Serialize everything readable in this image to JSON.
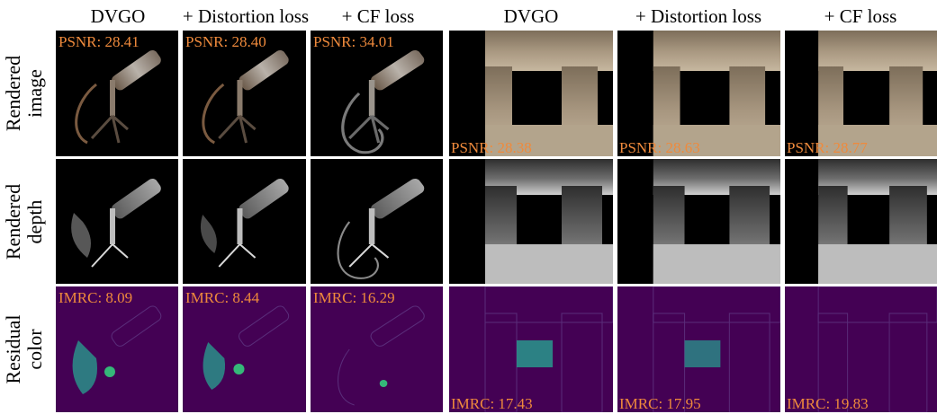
{
  "column_headers": [
    "DVGO",
    "+ Distortion loss",
    "+ CF loss",
    "DVGO",
    "+ Distortion loss",
    "+ CF loss"
  ],
  "row_labels": [
    [
      "Rendered",
      "image"
    ],
    [
      "Rendered",
      "depth"
    ],
    [
      "Residual",
      "color"
    ]
  ],
  "metrics": {
    "mic_image": [
      "PSNR: 28.41",
      "PSNR: 28.40",
      "PSNR: 34.01"
    ],
    "stone_image": [
      "PSNR: 28.38",
      "PSNR: 28.63",
      "PSNR: 28.77"
    ],
    "mic_residual": [
      "IMRC: 8.09",
      "IMRC: 8.44",
      "IMRC: 16.29"
    ],
    "stone_residual": [
      "IMRC: 17.43",
      "IMRC: 17.95",
      "IMRC: 19.83"
    ]
  },
  "colors": {
    "metric_text": "#ef8a3c",
    "render_bg": "#000000",
    "residual_bg": "#440154",
    "residual_hot": "#35b779"
  }
}
